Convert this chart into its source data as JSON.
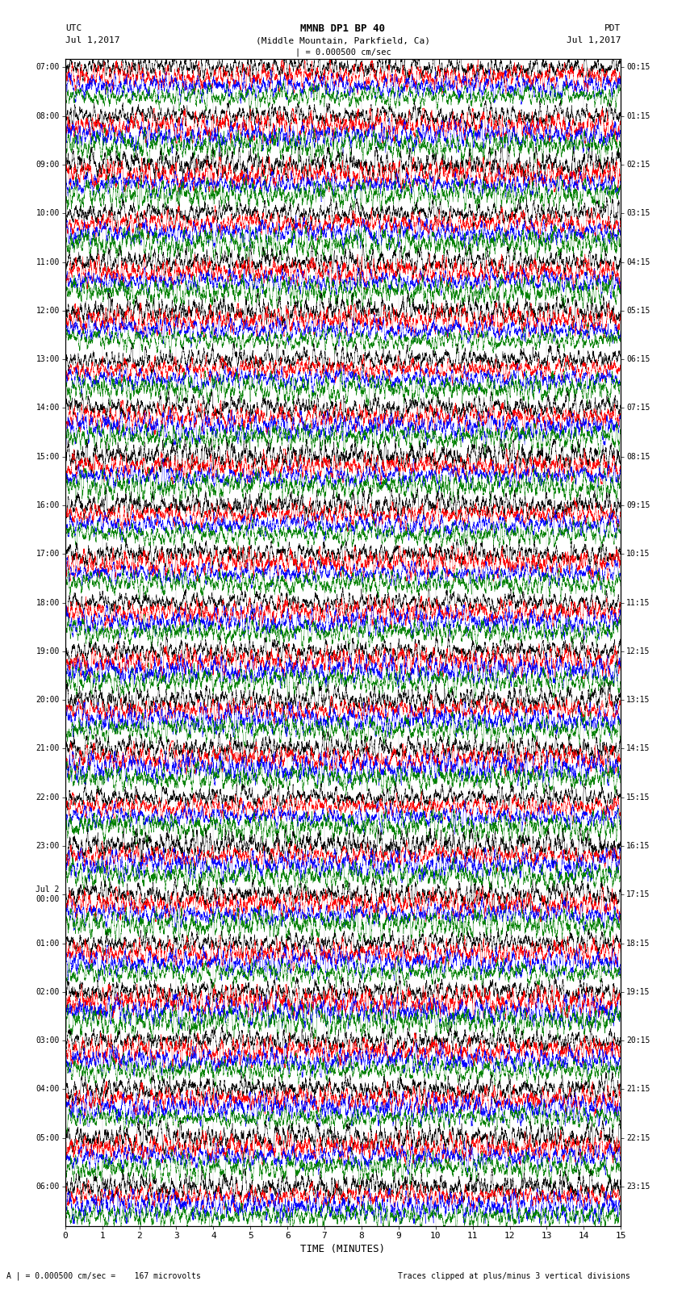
{
  "title_line1": "MMNB DP1 BP 40",
  "title_line2": "(Middle Mountain, Parkfield, Ca)",
  "scale_label": "| = 0.000500 cm/sec",
  "left_label_line1": "UTC",
  "left_label_line2": "Jul 1,2017",
  "right_label_line1": "PDT",
  "right_label_line2": "Jul 1,2017",
  "bottom_label1": "A | = 0.000500 cm/sec =    167 microvolts",
  "bottom_label2": "Traces clipped at plus/minus 3 vertical divisions",
  "xlabel": "TIME (MINUTES)",
  "xmin": 0,
  "xmax": 15,
  "xticks": [
    0,
    1,
    2,
    3,
    4,
    5,
    6,
    7,
    8,
    9,
    10,
    11,
    12,
    13,
    14,
    15
  ],
  "left_times": [
    "07:00",
    "08:00",
    "09:00",
    "10:00",
    "11:00",
    "12:00",
    "13:00",
    "14:00",
    "15:00",
    "16:00",
    "17:00",
    "18:00",
    "19:00",
    "20:00",
    "21:00",
    "22:00",
    "23:00",
    "Jul 2\n00:00",
    "01:00",
    "02:00",
    "03:00",
    "04:00",
    "05:00",
    "06:00"
  ],
  "right_times": [
    "00:15",
    "01:15",
    "02:15",
    "03:15",
    "04:15",
    "05:15",
    "06:15",
    "07:15",
    "08:15",
    "09:15",
    "10:15",
    "11:15",
    "12:15",
    "13:15",
    "14:15",
    "15:15",
    "16:15",
    "17:15",
    "18:15",
    "19:15",
    "20:15",
    "21:15",
    "22:15",
    "23:15"
  ],
  "n_rows": 24,
  "traces_per_row": 4,
  "trace_colors": [
    "black",
    "red",
    "blue",
    "green"
  ],
  "bg_color": "white",
  "fig_width": 8.5,
  "fig_height": 16.13,
  "dpi": 100
}
